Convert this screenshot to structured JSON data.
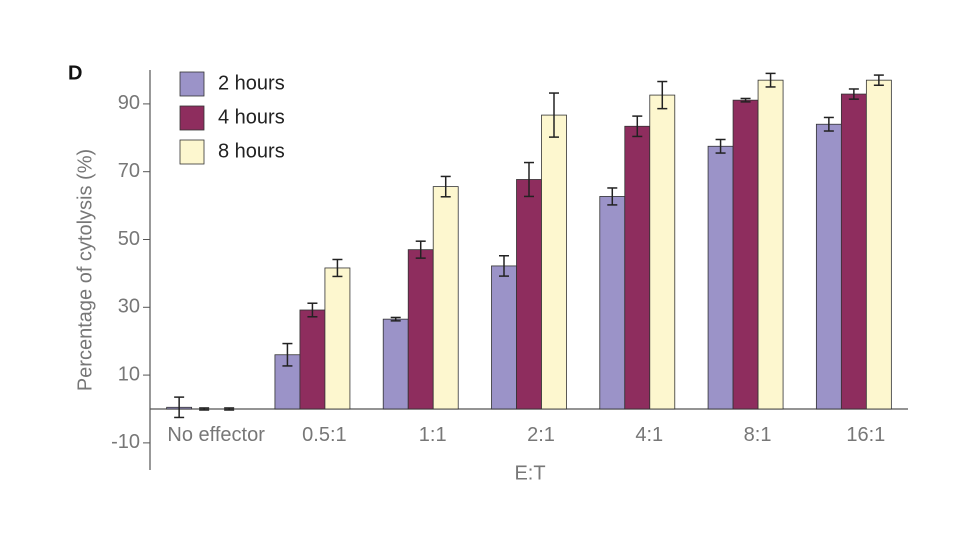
{
  "chart_data": {
    "type": "bar",
    "panel_label": "D",
    "xlabel": "E:T",
    "ylabel": "Percentage of cytolysis (%)",
    "categories": [
      "No effector",
      "0.5:1",
      "1:1",
      "2:1",
      "4:1",
      "8:1",
      "16:1"
    ],
    "series": [
      {
        "name": "2 hours",
        "color": "#9b93c8",
        "values": [
          0.5,
          16,
          26.5,
          42.2,
          62.7,
          77.5,
          84
        ],
        "errors": [
          3,
          3.3,
          0.5,
          3,
          2.5,
          2,
          2
        ]
      },
      {
        "name": "4 hours",
        "color": "#8e2d5e",
        "values": [
          0,
          29.2,
          47,
          67.7,
          83.4,
          91.1,
          92.9
        ],
        "errors": [
          0.3,
          2,
          2.5,
          5,
          3,
          0.5,
          1.5
        ]
      },
      {
        "name": "8 hours",
        "color": "#fdf7cf",
        "values": [
          0,
          41.6,
          65.6,
          86.7,
          92.6,
          97,
          97
        ],
        "errors": [
          0.3,
          2.5,
          3,
          6.5,
          4,
          2,
          1.5
        ]
      }
    ],
    "ylim": [
      -18,
      100
    ],
    "yticks": [
      -10,
      10,
      30,
      50,
      70,
      90
    ],
    "legend": "upper-left"
  }
}
